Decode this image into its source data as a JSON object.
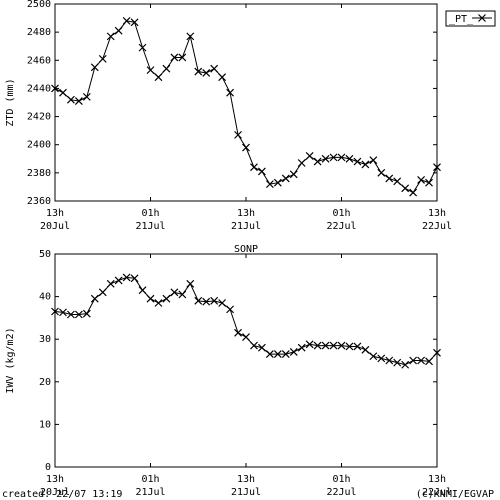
{
  "chart_data": [
    {
      "type": "line",
      "y_label": "ZTD (mm)",
      "x": [
        "20Jul 13h",
        "20Jul 14h",
        "20Jul 15h",
        "20Jul 16h",
        "20Jul 17h",
        "20Jul 18h",
        "20Jul 19h",
        "20Jul 20h",
        "20Jul 21h",
        "20Jul 22h",
        "20Jul 23h",
        "21Jul 00h",
        "21Jul 01h",
        "21Jul 02h",
        "21Jul 03h",
        "21Jul 04h",
        "21Jul 05h",
        "21Jul 06h",
        "21Jul 07h",
        "21Jul 08h",
        "21Jul 09h",
        "21Jul 10h",
        "21Jul 11h",
        "21Jul 12h",
        "21Jul 13h",
        "21Jul 14h",
        "21Jul 15h",
        "21Jul 16h",
        "21Jul 17h",
        "21Jul 18h",
        "21Jul 19h",
        "21Jul 20h",
        "21Jul 21h",
        "21Jul 22h",
        "21Jul 23h",
        "22Jul 00h",
        "22Jul 01h",
        "22Jul 02h",
        "22Jul 03h",
        "22Jul 04h",
        "22Jul 05h",
        "22Jul 06h",
        "22Jul 07h",
        "22Jul 08h",
        "22Jul 09h",
        "22Jul 10h",
        "22Jul 11h",
        "22Jul 12h",
        "22Jul 13h"
      ],
      "series": [
        {
          "name": "_PT_",
          "color": "#000000",
          "values": [
            2440,
            2437,
            2432,
            2431,
            2434,
            2455,
            2461,
            2477,
            2481,
            2488,
            2487,
            2469,
            2453,
            2448,
            2454,
            2462,
            2462,
            2477,
            2452,
            2451,
            2454,
            2448,
            2437,
            2407,
            2398,
            2384,
            2381,
            2372,
            2373,
            2376,
            2379,
            2387,
            2392,
            2388,
            2390,
            2391,
            2391,
            2390,
            2388,
            2386,
            2389,
            2380,
            2376,
            2374,
            2369,
            2366,
            2375,
            2373,
            2384
          ]
        }
      ],
      "xlim": [
        "20Jul 13h",
        "22Jul 13h"
      ],
      "xticks": [
        {
          "value": "20Jul 13h",
          "label": "13h 20Jul"
        },
        {
          "value": "21Jul 01h",
          "label": "01h 21Jul"
        },
        {
          "value": "21Jul 13h",
          "label": "13h 21Jul"
        },
        {
          "value": "22Jul 01h",
          "label": "01h 22Jul"
        },
        {
          "value": "22Jul 13h",
          "label": "13h 22Jul"
        }
      ],
      "ylim": [
        2360,
        2500
      ],
      "yticks": [
        2360,
        2380,
        2400,
        2420,
        2440,
        2460,
        2480,
        2500
      ],
      "legend": "upper right"
    },
    {
      "type": "line",
      "title": "SONP",
      "y_label": "IWV (kg/m2)",
      "x": [
        "20Jul 13h",
        "20Jul 14h",
        "20Jul 15h",
        "20Jul 16h",
        "20Jul 17h",
        "20Jul 18h",
        "20Jul 19h",
        "20Jul 20h",
        "20Jul 21h",
        "20Jul 22h",
        "20Jul 23h",
        "21Jul 00h",
        "21Jul 01h",
        "21Jul 02h",
        "21Jul 03h",
        "21Jul 04h",
        "21Jul 05h",
        "21Jul 06h",
        "21Jul 07h",
        "21Jul 08h",
        "21Jul 09h",
        "21Jul 10h",
        "21Jul 11h",
        "21Jul 12h",
        "21Jul 13h",
        "21Jul 14h",
        "21Jul 15h",
        "21Jul 16h",
        "21Jul 17h",
        "21Jul 18h",
        "21Jul 19h",
        "21Jul 20h",
        "21Jul 21h",
        "21Jul 22h",
        "21Jul 23h",
        "22Jul 00h",
        "22Jul 01h",
        "22Jul 02h",
        "22Jul 03h",
        "22Jul 04h",
        "22Jul 05h",
        "22Jul 06h",
        "22Jul 07h",
        "22Jul 08h",
        "22Jul 09h",
        "22Jul 10h",
        "22Jul 11h",
        "22Jul 12h",
        "22Jul 13h"
      ],
      "series": [
        {
          "color": "#000000",
          "values": [
            36.5,
            36.3,
            35.8,
            35.8,
            36,
            39.5,
            41,
            43,
            43.8,
            44.5,
            44.3,
            41.5,
            39.5,
            38.5,
            39.5,
            41,
            40.5,
            43,
            39,
            38.8,
            39,
            38.5,
            37,
            31.5,
            30.5,
            28.5,
            28,
            26.5,
            26.5,
            26.5,
            27,
            28,
            28.8,
            28.5,
            28.5,
            28.5,
            28.5,
            28.3,
            28.3,
            27.5,
            26,
            25.5,
            25,
            24.5,
            24,
            25,
            25,
            24.8,
            26.8
          ]
        }
      ],
      "xlim": [
        "20Jul 13h",
        "22Jul 13h"
      ],
      "xticks": [
        {
          "value": "20Jul 13h",
          "label": "13h 20Jul"
        },
        {
          "value": "21Jul 01h",
          "label": "01h 21Jul"
        },
        {
          "value": "21Jul 13h",
          "label": "13h 21Jul"
        },
        {
          "value": "22Jul 01h",
          "label": "01h 22Jul"
        },
        {
          "value": "22Jul 13h",
          "label": "13h 22Jul"
        }
      ],
      "ylim": [
        0,
        50
      ],
      "yticks": [
        0,
        10,
        20,
        30,
        40,
        50
      ]
    }
  ],
  "footer": {
    "created": "created: 22/07 13:19",
    "credit": "(c)KNMI/EGVAP"
  }
}
